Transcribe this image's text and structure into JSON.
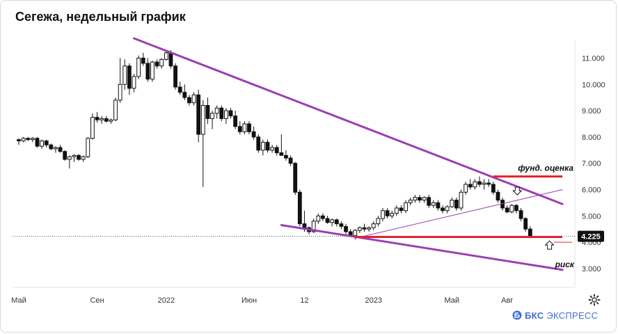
{
  "chart_data": {
    "type": "candlestick",
    "title": "Сегежа, недельный график",
    "ylim": [
      2.6,
      11.7
    ],
    "yticks": [
      "11.000",
      "10.000",
      "9.000",
      "8.000",
      "7.000",
      "6.000",
      "5.000",
      "4.000",
      "3.000"
    ],
    "ytick_values": [
      11,
      10,
      9,
      8,
      7,
      6,
      5,
      4,
      3
    ],
    "xticks": [
      "Май",
      "Сен",
      "2022",
      "Июн",
      "12",
      "2023",
      "Май",
      "Авг"
    ],
    "xtick_index": [
      0,
      17,
      32,
      50,
      62,
      77,
      94,
      106
    ],
    "last_price_label": "4.225",
    "last_price": 4.225,
    "annotations": {
      "fundamental": "фунд. оценка",
      "fundamental_value": 6.5,
      "risk": "риск"
    },
    "trendlines": [
      {
        "from": [
          25,
          11.75
        ],
        "to": [
          118,
          5.45
        ],
        "width": "thick"
      },
      {
        "from": [
          57,
          4.65
        ],
        "to": [
          118,
          2.95
        ],
        "width": "thick"
      },
      {
        "from": [
          73,
          4.15
        ],
        "to": [
          118,
          6.0
        ],
        "width": "thin"
      }
    ],
    "levels": [
      {
        "value": 6.5,
        "from": 103,
        "to": 118
      },
      {
        "value": 4.2,
        "from": 73,
        "to": 118
      }
    ],
    "candles": [
      [
        7.9,
        7.95,
        7.7,
        7.85
      ],
      [
        7.85,
        8.0,
        7.8,
        7.95
      ],
      [
        7.95,
        8.0,
        7.85,
        7.9
      ],
      [
        7.9,
        8.0,
        7.8,
        7.95
      ],
      [
        7.95,
        8.0,
        7.6,
        7.65
      ],
      [
        7.65,
        7.9,
        7.55,
        7.85
      ],
      [
        7.85,
        7.9,
        7.6,
        7.7
      ],
      [
        7.7,
        7.75,
        7.5,
        7.55
      ],
      [
        7.55,
        7.65,
        7.4,
        7.6
      ],
      [
        7.6,
        7.7,
        7.4,
        7.45
      ],
      [
        7.45,
        7.5,
        7.1,
        7.15
      ],
      [
        7.15,
        7.3,
        6.8,
        7.25
      ],
      [
        7.25,
        7.35,
        7.05,
        7.3
      ],
      [
        7.3,
        7.35,
        7.1,
        7.15
      ],
      [
        7.15,
        7.3,
        7.05,
        7.25
      ],
      [
        7.25,
        8.0,
        7.2,
        7.95
      ],
      [
        7.95,
        8.9,
        7.9,
        8.75
      ],
      [
        8.75,
        8.95,
        8.55,
        8.65
      ],
      [
        8.65,
        8.8,
        8.5,
        8.7
      ],
      [
        8.7,
        8.8,
        8.55,
        8.6
      ],
      [
        8.6,
        8.7,
        8.5,
        8.65
      ],
      [
        8.65,
        9.5,
        8.6,
        9.4
      ],
      [
        9.4,
        11.0,
        9.3,
        10.0
      ],
      [
        10.0,
        10.95,
        9.8,
        10.7
      ],
      [
        10.7,
        10.8,
        9.6,
        9.85
      ],
      [
        9.85,
        10.4,
        9.7,
        10.3
      ],
      [
        10.3,
        11.1,
        10.2,
        11.0
      ],
      [
        11.0,
        11.2,
        10.7,
        10.8
      ],
      [
        10.8,
        11.0,
        10.1,
        10.2
      ],
      [
        10.2,
        10.9,
        10.1,
        10.85
      ],
      [
        10.85,
        10.95,
        10.6,
        10.7
      ],
      [
        10.7,
        11.0,
        10.6,
        10.95
      ],
      [
        10.95,
        11.3,
        10.9,
        11.2
      ],
      [
        11.2,
        11.3,
        10.6,
        10.7
      ],
      [
        10.7,
        10.8,
        9.8,
        9.9
      ],
      [
        9.9,
        10.1,
        9.6,
        9.7
      ],
      [
        9.7,
        10.0,
        9.4,
        9.5
      ],
      [
        9.5,
        9.6,
        9.2,
        9.3
      ],
      [
        9.3,
        9.7,
        9.2,
        9.6
      ],
      [
        9.6,
        9.8,
        7.8,
        8.1
      ],
      [
        8.1,
        9.4,
        6.1,
        9.2
      ],
      [
        9.2,
        9.5,
        8.5,
        8.7
      ],
      [
        8.7,
        9.0,
        8.3,
        8.9
      ],
      [
        8.9,
        9.2,
        8.7,
        9.1
      ],
      [
        9.1,
        9.2,
        8.6,
        8.7
      ],
      [
        8.7,
        9.1,
        8.5,
        9.0
      ],
      [
        9.0,
        9.1,
        8.7,
        8.8
      ],
      [
        8.8,
        9.0,
        8.3,
        8.4
      ],
      [
        8.4,
        8.6,
        8.1,
        8.2
      ],
      [
        8.2,
        8.6,
        8.1,
        8.5
      ],
      [
        8.5,
        8.6,
        8.1,
        8.2
      ],
      [
        8.2,
        8.4,
        7.9,
        8.0
      ],
      [
        8.0,
        8.1,
        7.4,
        7.5
      ],
      [
        7.5,
        7.9,
        7.3,
        7.8
      ],
      [
        7.8,
        7.9,
        7.4,
        7.5
      ],
      [
        7.5,
        7.7,
        7.4,
        7.6
      ],
      [
        7.6,
        7.7,
        7.3,
        7.4
      ],
      [
        7.4,
        8.1,
        7.3,
        7.3
      ],
      [
        7.3,
        7.5,
        7.1,
        7.2
      ],
      [
        7.2,
        7.3,
        6.9,
        7.0
      ],
      [
        7.0,
        7.05,
        5.8,
        5.9
      ],
      [
        5.9,
        6.0,
        4.6,
        4.7
      ],
      [
        4.7,
        5.2,
        4.4,
        4.55
      ],
      [
        4.55,
        4.6,
        4.3,
        4.4
      ],
      [
        4.4,
        4.9,
        4.35,
        4.8
      ],
      [
        4.8,
        5.1,
        4.7,
        5.0
      ],
      [
        5.0,
        5.1,
        4.8,
        4.9
      ],
      [
        4.9,
        5.0,
        4.7,
        4.75
      ],
      [
        4.75,
        4.9,
        4.6,
        4.85
      ],
      [
        4.85,
        4.9,
        4.6,
        4.7
      ],
      [
        4.7,
        4.8,
        4.5,
        4.6
      ],
      [
        4.6,
        4.7,
        4.3,
        4.4
      ],
      [
        4.4,
        4.5,
        4.2,
        4.25
      ],
      [
        4.25,
        4.5,
        4.1,
        4.45
      ],
      [
        4.45,
        4.6,
        4.35,
        4.55
      ],
      [
        4.55,
        4.7,
        4.4,
        4.5
      ],
      [
        4.5,
        4.6,
        4.4,
        4.55
      ],
      [
        4.55,
        4.8,
        4.45,
        4.7
      ],
      [
        4.7,
        5.0,
        4.6,
        4.9
      ],
      [
        4.9,
        5.3,
        4.8,
        5.2
      ],
      [
        5.2,
        5.3,
        4.9,
        5.0
      ],
      [
        5.0,
        5.2,
        4.9,
        5.1
      ],
      [
        5.1,
        5.4,
        5.0,
        5.3
      ],
      [
        5.3,
        5.4,
        5.1,
        5.2
      ],
      [
        5.2,
        5.6,
        5.1,
        5.5
      ],
      [
        5.5,
        5.7,
        5.4,
        5.6
      ],
      [
        5.6,
        5.8,
        5.5,
        5.7
      ],
      [
        5.7,
        5.8,
        5.5,
        5.6
      ],
      [
        5.6,
        5.75,
        5.5,
        5.7
      ],
      [
        5.7,
        5.8,
        5.3,
        5.4
      ],
      [
        5.4,
        5.6,
        5.3,
        5.5
      ],
      [
        5.5,
        5.6,
        5.2,
        5.3
      ],
      [
        5.3,
        5.4,
        5.1,
        5.2
      ],
      [
        5.2,
        5.4,
        5.1,
        5.35
      ],
      [
        5.35,
        5.7,
        5.3,
        5.6
      ],
      [
        5.6,
        5.7,
        5.2,
        5.3
      ],
      [
        5.3,
        6.0,
        5.2,
        5.9
      ],
      [
        5.9,
        6.3,
        5.8,
        6.2
      ],
      [
        6.2,
        6.4,
        6.0,
        6.1
      ],
      [
        6.1,
        6.4,
        6.0,
        6.3
      ],
      [
        6.3,
        6.5,
        6.1,
        6.2
      ],
      [
        6.2,
        6.4,
        6.0,
        6.25
      ],
      [
        6.25,
        6.4,
        6.1,
        6.2
      ],
      [
        6.2,
        6.3,
        5.8,
        5.9
      ],
      [
        5.9,
        6.0,
        5.5,
        5.6
      ],
      [
        5.6,
        5.7,
        5.2,
        5.3
      ],
      [
        5.3,
        5.4,
        5.1,
        5.15
      ],
      [
        5.15,
        5.45,
        5.1,
        5.4
      ],
      [
        5.4,
        5.45,
        5.1,
        5.2
      ],
      [
        5.2,
        5.3,
        4.8,
        4.9
      ],
      [
        4.9,
        4.95,
        4.4,
        4.5
      ],
      [
        4.5,
        4.6,
        4.15,
        4.225
      ]
    ]
  }
}
